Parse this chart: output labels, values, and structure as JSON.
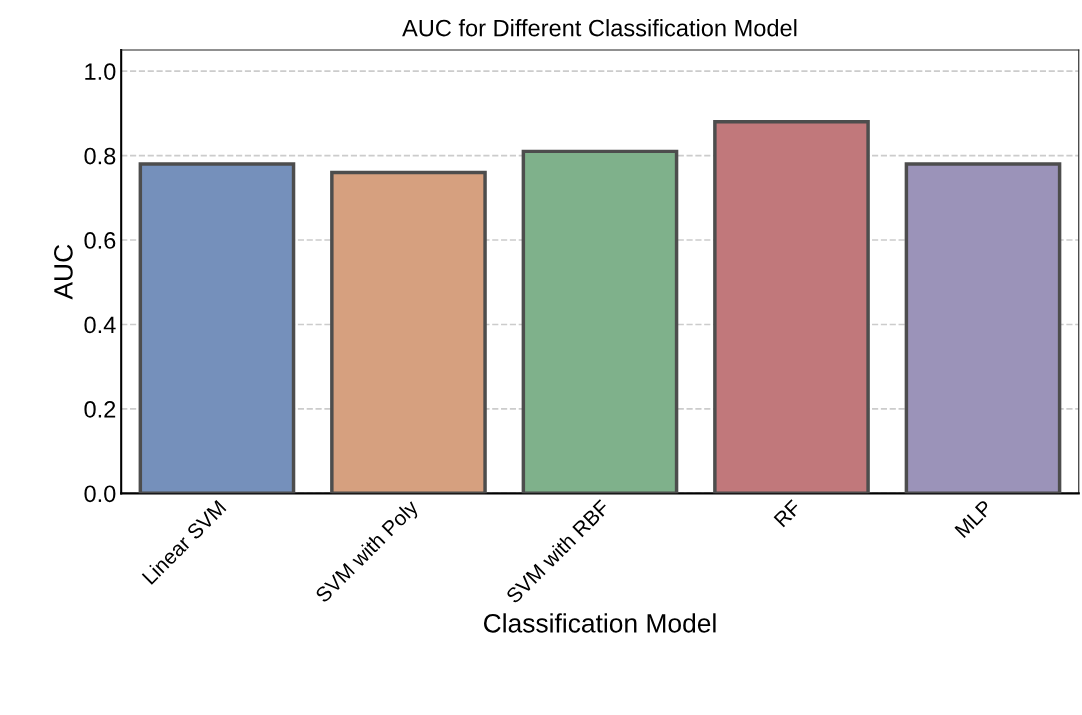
{
  "chart_data": {
    "type": "bar",
    "title": "AUC for Different Classification Model",
    "xlabel": "Classification Model",
    "ylabel": "AUC",
    "categories": [
      "Linear SVM",
      "SVM with Poly",
      "SVM with RBF",
      "RF",
      "MLP"
    ],
    "values": [
      0.78,
      0.76,
      0.81,
      0.88,
      0.78
    ],
    "colors": [
      "#7590bb",
      "#d6a07f",
      "#7fb18b",
      "#c1787b",
      "#9b93b9"
    ],
    "ylim": [
      0,
      1.05
    ],
    "yticks": [
      {
        "value": 0,
        "label": "0.0"
      },
      {
        "value": 0.2,
        "label": "0.2"
      },
      {
        "value": 0.4,
        "label": "0.4"
      },
      {
        "value": 0.6,
        "label": "0.6"
      },
      {
        "value": 0.8,
        "label": "0.8"
      },
      {
        "value": 1.0,
        "label": "1.0"
      }
    ],
    "grid": "y",
    "line_style": "dashed"
  }
}
